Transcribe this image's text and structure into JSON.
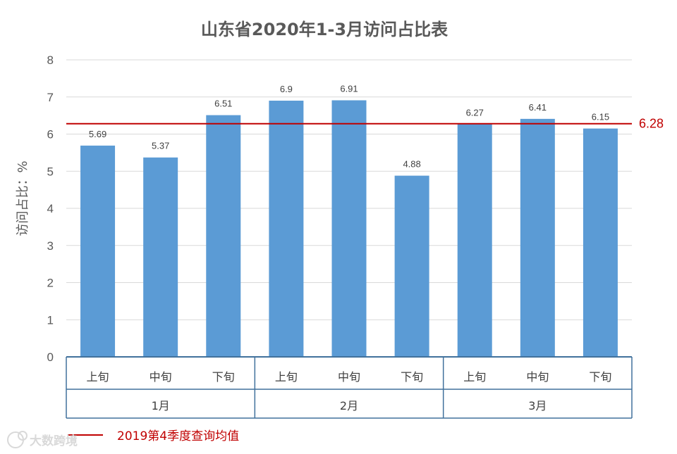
{
  "chart_data": {
    "type": "bar",
    "title": "山东省2020年1-3月访问占比表",
    "ylabel": "访问占比：%",
    "xlabel": "",
    "ylim": [
      0,
      8
    ],
    "yticks": [
      "0",
      "1",
      "2",
      "3",
      "4",
      "5",
      "6",
      "7",
      "8"
    ],
    "grid": true,
    "categories": [
      "上旬",
      "中旬",
      "下旬",
      "上旬",
      "中旬",
      "下旬",
      "上旬",
      "中旬",
      "下旬"
    ],
    "groups": [
      {
        "label": "1月",
        "count": 3
      },
      {
        "label": "2月",
        "count": 3
      },
      {
        "label": "3月",
        "count": 3
      }
    ],
    "values": [
      5.69,
      5.37,
      6.51,
      6.9,
      6.91,
      4.88,
      6.27,
      6.41,
      6.15
    ],
    "value_labels": [
      "5.69",
      "5.37",
      "6.51",
      "6.9",
      "6.91",
      "4.88",
      "6.27",
      "6.41",
      "6.15"
    ],
    "bar_color": "#5b9bd5",
    "reference_line": {
      "value": 6.28,
      "label": "6.28",
      "color": "#c00000",
      "legend": "2019第4季度查询均值"
    },
    "legend_position": "bottom-left"
  },
  "watermark": "大数跨境"
}
